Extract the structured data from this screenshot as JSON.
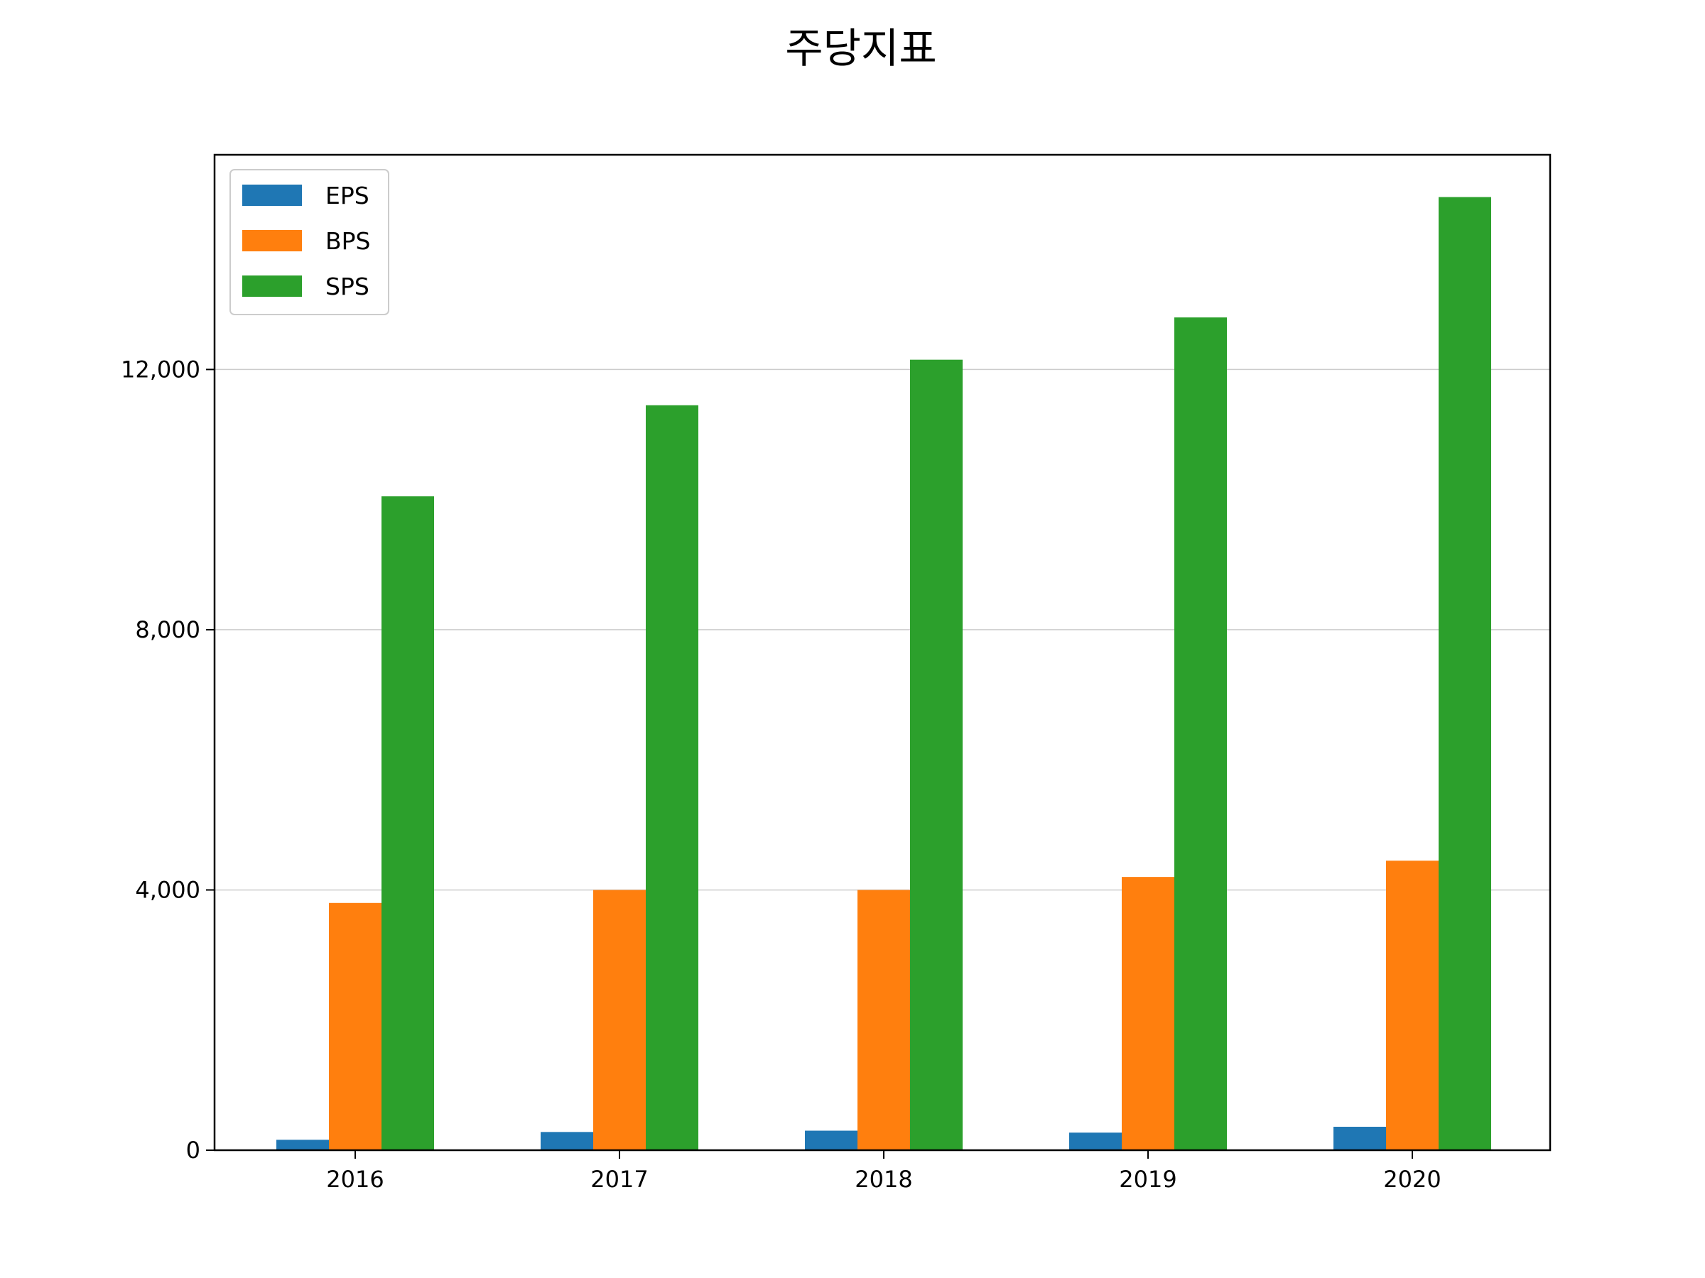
{
  "chart_data": {
    "type": "bar",
    "title": "주당지표",
    "xlabel": "",
    "ylabel": "",
    "categories": [
      "2016",
      "2017",
      "2018",
      "2019",
      "2020"
    ],
    "ylim": [
      0,
      15300
    ],
    "yticks": [
      0,
      4000,
      8000,
      12000
    ],
    "ytick_labels": [
      "0",
      "4,000",
      "8,000",
      "12,000"
    ],
    "grid": "y",
    "legend_position": "top-left",
    "series": [
      {
        "name": "EPS",
        "color": "#1f77b4",
        "values": [
          160,
          280,
          300,
          270,
          360
        ]
      },
      {
        "name": "BPS",
        "color": "#ff7f0e",
        "values": [
          3800,
          4000,
          4000,
          4200,
          4450
        ]
      },
      {
        "name": "SPS",
        "color": "#2ca02c",
        "values": [
          10050,
          11450,
          12150,
          12800,
          14650
        ]
      }
    ]
  }
}
